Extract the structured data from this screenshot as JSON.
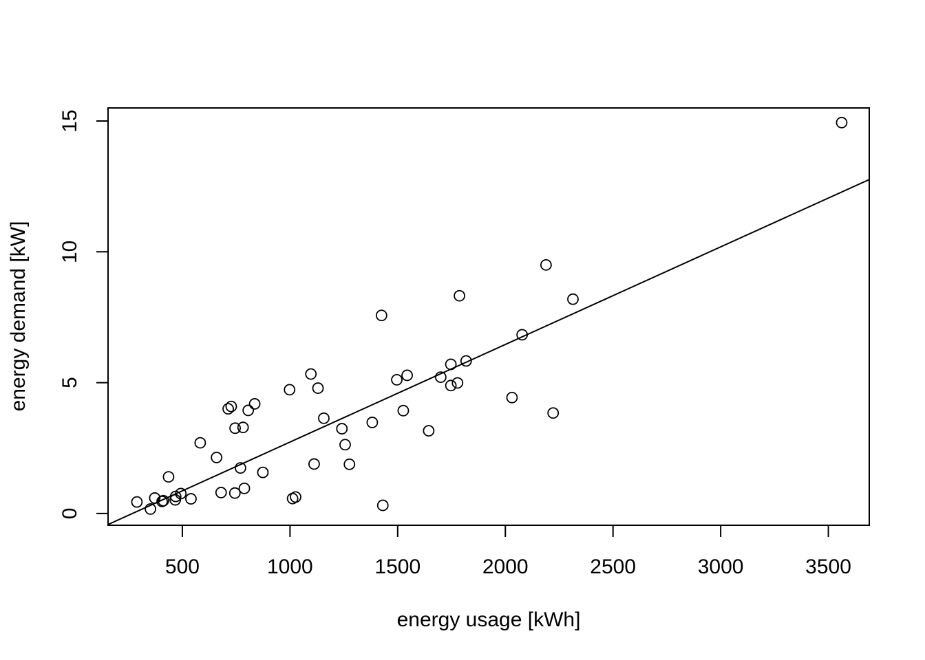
{
  "chart_data": {
    "type": "scatter",
    "title": "",
    "xlabel": "energy usage [kWh]",
    "ylabel": "energy demand [kW]",
    "xlim": [
      155,
      3690
    ],
    "ylim": [
      -0.45,
      15.5
    ],
    "x_ticks": [
      500,
      1000,
      1500,
      2000,
      2500,
      3000,
      3500
    ],
    "y_ticks": [
      0,
      5,
      10,
      15
    ],
    "x_tick_labels": [
      "500",
      "1000",
      "1500",
      "2000",
      "2500",
      "3000",
      "3500"
    ],
    "y_tick_labels": [
      "0",
      "5",
      "10",
      "15"
    ],
    "grid": false,
    "legend": null,
    "marker": "open-circle",
    "color": "#000000",
    "points": [
      [
        3562,
        14.94
      ],
      [
        2189,
        9.5
      ],
      [
        2314,
        8.19
      ],
      [
        1787,
        8.32
      ],
      [
        1425,
        7.57
      ],
      [
        2078,
        6.83
      ],
      [
        1818,
        5.83
      ],
      [
        1747,
        5.7
      ],
      [
        1097,
        5.33
      ],
      [
        1544,
        5.28
      ],
      [
        1700,
        5.21
      ],
      [
        1496,
        5.11
      ],
      [
        1778,
        4.99
      ],
      [
        1747,
        4.89
      ],
      [
        1130,
        4.79
      ],
      [
        998,
        4.73
      ],
      [
        2031,
        4.43
      ],
      [
        836,
        4.19
      ],
      [
        727,
        4.09
      ],
      [
        713,
        4.0
      ],
      [
        806,
        3.94
      ],
      [
        1526,
        3.93
      ],
      [
        2222,
        3.84
      ],
      [
        1157,
        3.64
      ],
      [
        1382,
        3.48
      ],
      [
        782,
        3.29
      ],
      [
        745,
        3.26
      ],
      [
        1241,
        3.24
      ],
      [
        1644,
        3.16
      ],
      [
        583,
        2.7
      ],
      [
        1256,
        2.63
      ],
      [
        659,
        2.14
      ],
      [
        1112,
        1.89
      ],
      [
        1276,
        1.88
      ],
      [
        770,
        1.74
      ],
      [
        874,
        1.57
      ],
      [
        436,
        1.4
      ],
      [
        788,
        0.96
      ],
      [
        680,
        0.8
      ],
      [
        744,
        0.78
      ],
      [
        493,
        0.76
      ],
      [
        469,
        0.65
      ],
      [
        1026,
        0.63
      ],
      [
        1012,
        0.57
      ],
      [
        372,
        0.59
      ],
      [
        540,
        0.56
      ],
      [
        467,
        0.52
      ],
      [
        412,
        0.49
      ],
      [
        406,
        0.46
      ],
      [
        289,
        0.44
      ],
      [
        1431,
        0.31
      ],
      [
        352,
        0.17
      ]
    ],
    "fit_line": {
      "intercept": -1.0,
      "slope": 0.00373,
      "x_range": [
        155,
        3690
      ]
    }
  }
}
